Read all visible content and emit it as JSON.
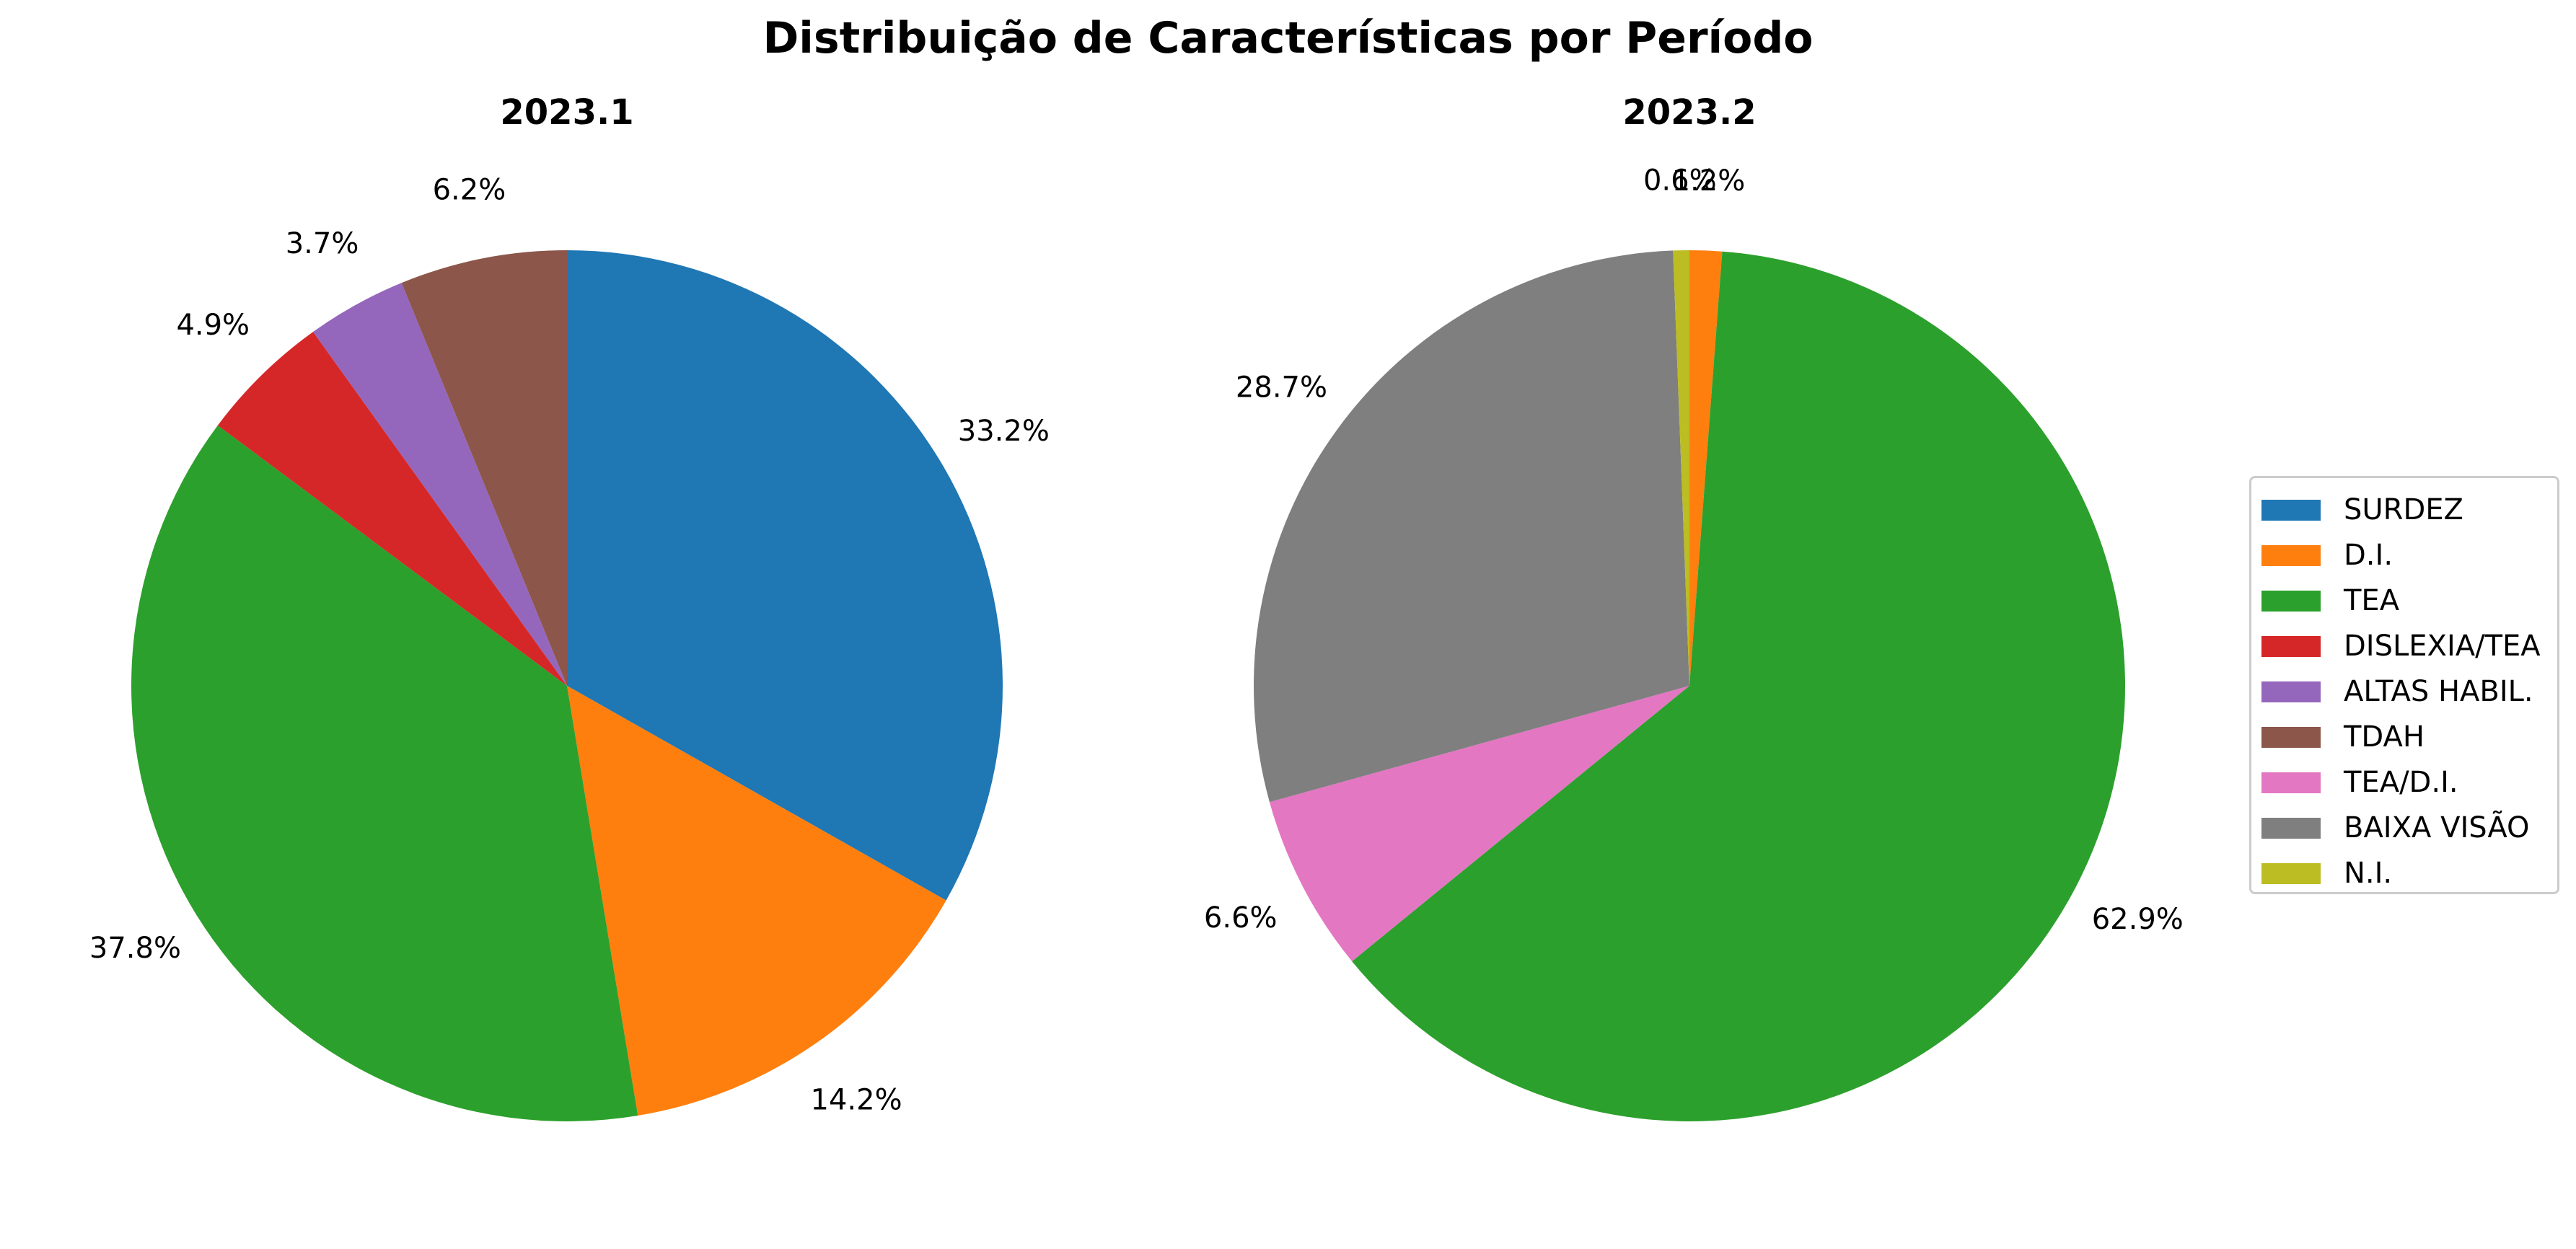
{
  "title": "Distribuição de Características por Período",
  "chart_data": [
    {
      "type": "pie",
      "title": "2023.1",
      "labels": [
        "SURDEZ",
        "D.I.",
        "TEA",
        "DISLEXIA/TEA",
        "ALTAS HABIL.",
        "TDAH"
      ],
      "values": [
        33.2,
        14.2,
        37.8,
        4.9,
        3.7,
        6.2
      ],
      "value_labels": [
        "33.2%",
        "14.2%",
        "37.8%",
        "4.9%",
        "3.7%",
        "6.2%"
      ],
      "colors": [
        "#1f77b4",
        "#ff7f0e",
        "#2ca02c",
        "#d62728",
        "#9467bd",
        "#8c564b"
      ],
      "start_angle": 90,
      "direction": "clockwise"
    },
    {
      "type": "pie",
      "title": "2023.2",
      "labels": [
        "D.I.",
        "TEA",
        "TEA/D.I.",
        "BAIXA VISÃO",
        "N.I."
      ],
      "values": [
        1.2,
        62.9,
        6.6,
        28.7,
        0.6
      ],
      "value_labels": [
        "1.2%",
        "62.9%",
        "6.6%",
        "28.7%",
        "0.6%"
      ],
      "colors": [
        "#ff7f0e",
        "#2ca02c",
        "#e377c2",
        "#7f7f7f",
        "#bcbd22"
      ],
      "start_angle": 90,
      "direction": "clockwise"
    }
  ],
  "legend": {
    "placement": "right",
    "items": [
      {
        "label": "SURDEZ",
        "color": "#1f77b4"
      },
      {
        "label": "D.I.",
        "color": "#ff7f0e"
      },
      {
        "label": "TEA",
        "color": "#2ca02c"
      },
      {
        "label": "DISLEXIA/TEA",
        "color": "#d62728"
      },
      {
        "label": "ALTAS HABIL.",
        "color": "#9467bd"
      },
      {
        "label": "TDAH",
        "color": "#8c564b"
      },
      {
        "label": "TEA/D.I.",
        "color": "#e377c2"
      },
      {
        "label": "BAIXA VISÃO",
        "color": "#7f7f7f"
      },
      {
        "label": "N.I.",
        "color": "#bcbd22"
      }
    ]
  }
}
